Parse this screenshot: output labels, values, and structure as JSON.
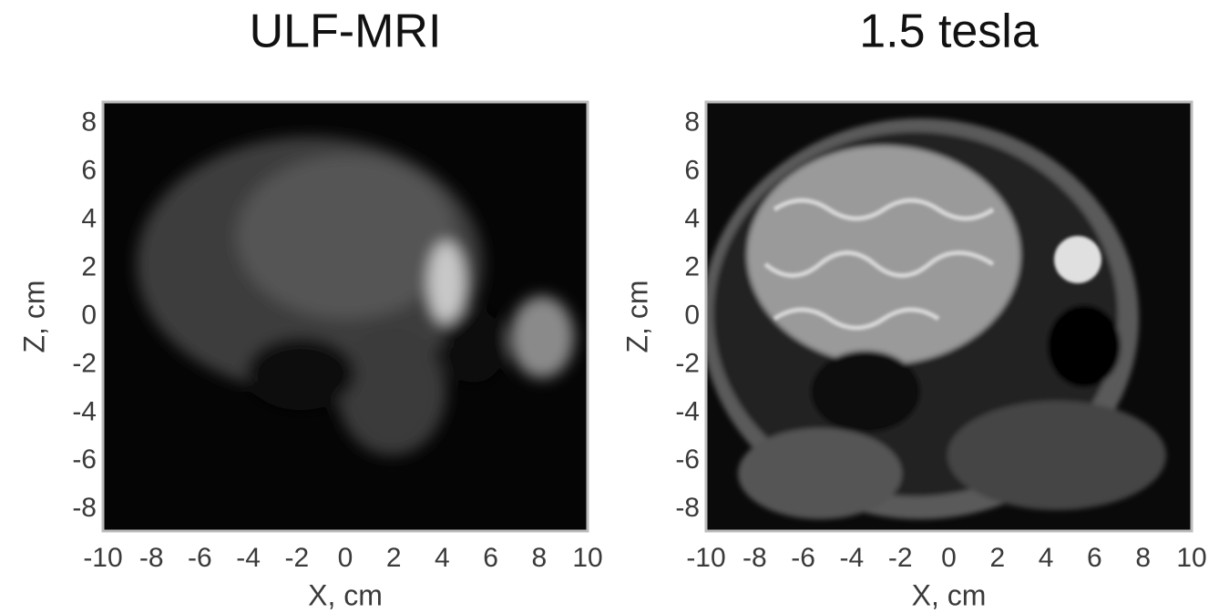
{
  "chart_data": [
    {
      "type": "image",
      "title": "ULF-MRI",
      "xlabel": "X, cm",
      "ylabel": "Z, cm",
      "xlim": [
        -10,
        10
      ],
      "ylim": [
        -8.9,
        8.9
      ],
      "xticks": [
        -10,
        -8,
        -6,
        -4,
        -2,
        0,
        2,
        4,
        6,
        8,
        10
      ],
      "yticks": [
        -8,
        -6,
        -4,
        -2,
        0,
        2,
        4,
        6,
        8
      ]
    },
    {
      "type": "image",
      "title": "1.5 tesla",
      "xlabel": "X, cm",
      "ylabel": "Z, cm",
      "xlim": [
        -10,
        10
      ],
      "ylim": [
        -8.9,
        8.9
      ],
      "xticks": [
        -10,
        -8,
        -6,
        -4,
        -2,
        0,
        2,
        4,
        6,
        8,
        10
      ],
      "yticks": [
        -8,
        -6,
        -4,
        -2,
        0,
        2,
        4,
        6,
        8
      ]
    }
  ]
}
